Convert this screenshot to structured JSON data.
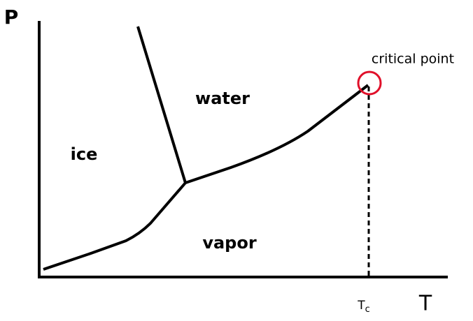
{
  "axes": {
    "y_label": "P",
    "x_label": "T"
  },
  "regions": {
    "ice": "ice",
    "water": "water",
    "vapor": "vapor"
  },
  "critical_point": {
    "label": "critical point",
    "temperature_label": {
      "main": "T",
      "sub": "c"
    }
  }
}
